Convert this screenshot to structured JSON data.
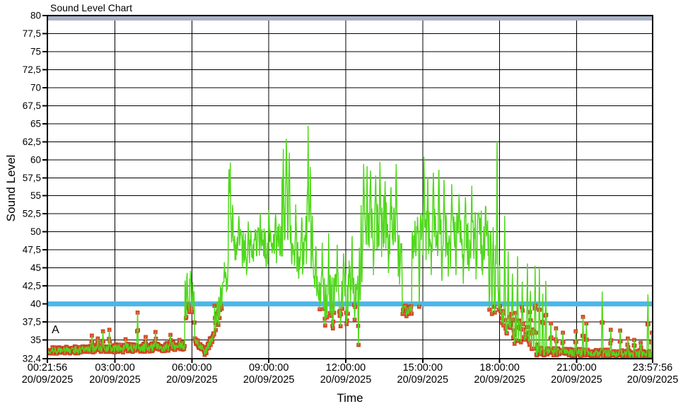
{
  "window": {
    "title": "Sound Level Chart"
  },
  "chart_data": {
    "type": "line",
    "title": "Sound Level Chart",
    "grid": "on",
    "legend": "none",
    "colors": {
      "trace": "#50d81c",
      "marker_fill": "#e1502d",
      "marker_edge": "#c23c1d",
      "alarm_line_40": "#4db7e9",
      "limit_band_80": "#a9b2c7",
      "grid_line": "#000000",
      "background": "#ffffff",
      "text": "#000000"
    },
    "x_axis": {
      "title": "Time",
      "start_minutes": 21.933,
      "end_minutes": 1437.933,
      "ticks": [
        {
          "time": "00:21:56",
          "date": "20/09/2025",
          "minutes": 21.933,
          "gridline": false
        },
        {
          "time": "03:00:00",
          "date": "20/09/2025",
          "minutes": 180,
          "gridline": true
        },
        {
          "time": "06:00:00",
          "date": "20/09/2025",
          "minutes": 360,
          "gridline": true
        },
        {
          "time": "09:00:00",
          "date": "20/09/2025",
          "minutes": 540,
          "gridline": true
        },
        {
          "time": "12:00:00",
          "date": "20/09/2025",
          "minutes": 720,
          "gridline": true
        },
        {
          "time": "15:00:00",
          "date": "20/09/2025",
          "minutes": 900,
          "gridline": true
        },
        {
          "time": "18:00:00",
          "date": "20/09/2025",
          "minutes": 1080,
          "gridline": true
        },
        {
          "time": "21:00:00",
          "date": "20/09/2025",
          "minutes": 1260,
          "gridline": true
        },
        {
          "time": "23:57:56",
          "date": "20/09/2025",
          "minutes": 1437.933,
          "gridline": false
        }
      ]
    },
    "y_axis": {
      "title": "Sound Level",
      "min": 32.4,
      "max": 80,
      "ticks": [
        {
          "label": "80",
          "value": 80
        },
        {
          "label": "77,5",
          "value": 77.5
        },
        {
          "label": "75",
          "value": 75
        },
        {
          "label": "72,5",
          "value": 72.5
        },
        {
          "label": "70",
          "value": 70
        },
        {
          "label": "67,5",
          "value": 67.5
        },
        {
          "label": "65",
          "value": 65
        },
        {
          "label": "62,5",
          "value": 62.5
        },
        {
          "label": "60",
          "value": 60
        },
        {
          "label": "57,5",
          "value": 57.5
        },
        {
          "label": "55",
          "value": 55
        },
        {
          "label": "52,5",
          "value": 52.5
        },
        {
          "label": "50",
          "value": 50
        },
        {
          "label": "47,5",
          "value": 47.5
        },
        {
          "label": "45",
          "value": 45
        },
        {
          "label": "42,5",
          "value": 42.5
        },
        {
          "label": "40",
          "value": 40
        },
        {
          "label": "37,5",
          "value": 37.5
        },
        {
          "label": "35",
          "value": 35
        },
        {
          "label": "32,4",
          "value": 32.4
        }
      ]
    },
    "limit_lines": [
      {
        "name": "upper-limit-80",
        "value": 80,
        "thickness": 6,
        "color": "#a9b2c7"
      },
      {
        "name": "alarm-level-40",
        "value": 40,
        "thickness": 7,
        "color": "#4db7e9"
      }
    ],
    "annotation": {
      "label": "A",
      "minutes": 32,
      "value": 36.3
    },
    "series": {
      "name": "Sound Level",
      "sample_step_minutes": 1,
      "line_width": 1.3,
      "marker": {
        "shape": "square",
        "size": 5,
        "rule": "value < threshold"
      },
      "marker_threshold": 40,
      "segments_format": "[t_start_min, t_end_min, level_from_dB, level_to_dB, jitter_dB]",
      "segments": [
        [
          21.933,
          120,
          33.5,
          33.7,
          0.5
        ],
        [
          120,
          230,
          33.7,
          33.9,
          0.6
        ],
        [
          230,
          343,
          33.9,
          34.1,
          0.6
        ],
        [
          343,
          366,
          40.5,
          40.5,
          3.0
        ],
        [
          366,
          390,
          35.0,
          33.3,
          0.5
        ],
        [
          390,
          412,
          33.3,
          35.8,
          0.6
        ],
        [
          412,
          444,
          37.0,
          43.5,
          2.0
        ],
        [
          444,
          456,
          50.0,
          49.0,
          4.0
        ],
        [
          456,
          570,
          47.6,
          48.8,
          2.4
        ],
        [
          570,
          592,
          52.0,
          52.0,
          4.2
        ],
        [
          592,
          625,
          47.0,
          47.0,
          2.8
        ],
        [
          625,
          642,
          50.0,
          48.0,
          4.5
        ],
        [
          642,
          658,
          45.5,
          42.5,
          3.0
        ],
        [
          658,
          755,
          41.3,
          41.3,
          3.2
        ],
        [
          755,
          840,
          50.3,
          50.3,
          3.8
        ],
        [
          840,
          852,
          47.0,
          45.0,
          3.5
        ],
        [
          852,
          874,
          39.2,
          39.0,
          0.7
        ],
        [
          874,
          880,
          46.0,
          48.0,
          3.0
        ],
        [
          880,
          1066,
          49.8,
          49.8,
          3.6
        ],
        [
          1066,
          1080,
          44.0,
          42.0,
          3.5
        ],
        [
          1080,
          1170,
          38.2,
          34.3,
          1.7
        ],
        [
          1170,
          1437.933,
          33.4,
          33.0,
          0.5
        ]
      ],
      "peaks_format": "[t_min, value_dB]",
      "peaks": [
        [
          126,
          35.6
        ],
        [
          140,
          35.2
        ],
        [
          152,
          36.2
        ],
        [
          167,
          36.4
        ],
        [
          205,
          35.1
        ],
        [
          233,
          38.8
        ],
        [
          252,
          35.4
        ],
        [
          275,
          36.1
        ],
        [
          310,
          35.7
        ],
        [
          331,
          35.0
        ],
        [
          349,
          44.3
        ],
        [
          357,
          44.6
        ],
        [
          362,
          43.0
        ],
        [
          436,
          45.8
        ],
        [
          447,
          58.7
        ],
        [
          450,
          59.6
        ],
        [
          470,
          52.2
        ],
        [
          488,
          44.0
        ],
        [
          520,
          52.6
        ],
        [
          540,
          53.0
        ],
        [
          556,
          52.4
        ],
        [
          574,
          61.5
        ],
        [
          581,
          62.9
        ],
        [
          588,
          61.0
        ],
        [
          603,
          53.8
        ],
        [
          610,
          43.5
        ],
        [
          617,
          52.0
        ],
        [
          632,
          64.7
        ],
        [
          637,
          59.0
        ],
        [
          650,
          48.0
        ],
        [
          665,
          48.5
        ],
        [
          672,
          37.0
        ],
        [
          680,
          49.8
        ],
        [
          690,
          36.6
        ],
        [
          700,
          48.2
        ],
        [
          708,
          36.9
        ],
        [
          715,
          47.0
        ],
        [
          722,
          37.2
        ],
        [
          728,
          46.0
        ],
        [
          735,
          49.4
        ],
        [
          741,
          37.8
        ],
        [
          746,
          42.0
        ],
        [
          750,
          34.3
        ],
        [
          752,
          47.8
        ],
        [
          758,
          43.0
        ],
        [
          762,
          59.4
        ],
        [
          770,
          59.1
        ],
        [
          778,
          58.5
        ],
        [
          785,
          44.0
        ],
        [
          790,
          57.8
        ],
        [
          800,
          59.7
        ],
        [
          812,
          57.0
        ],
        [
          820,
          44.3
        ],
        [
          826,
          56.2
        ],
        [
          838,
          59.4
        ],
        [
          862,
          38.3
        ],
        [
          870,
          39.6
        ],
        [
          876,
          50.1
        ],
        [
          892,
          39.6
        ],
        [
          903,
          60.4
        ],
        [
          912,
          57.6
        ],
        [
          920,
          44.0
        ],
        [
          925,
          58.2
        ],
        [
          938,
          58.6
        ],
        [
          945,
          43.2
        ],
        [
          950,
          57.2
        ],
        [
          960,
          43.8
        ],
        [
          968,
          56.6
        ],
        [
          978,
          44.0
        ],
        [
          985,
          55.2
        ],
        [
          995,
          42.8
        ],
        [
          1000,
          54.8
        ],
        [
          1008,
          44.6
        ],
        [
          1015,
          56.4
        ],
        [
          1025,
          43.4
        ],
        [
          1032,
          52.3
        ],
        [
          1040,
          44.0
        ],
        [
          1047,
          53.6
        ],
        [
          1056,
          39.2
        ],
        [
          1062,
          38.6
        ],
        [
          1069,
          38.8
        ],
        [
          1074,
          62.6
        ],
        [
          1078,
          39.2
        ],
        [
          1092,
          52.2
        ],
        [
          1100,
          47.3
        ],
        [
          1110,
          44.2
        ],
        [
          1122,
          46.6
        ],
        [
          1133,
          43.1
        ],
        [
          1145,
          45.6
        ],
        [
          1152,
          41.8
        ],
        [
          1163,
          45.3
        ],
        [
          1173,
          45.2
        ],
        [
          1181,
          41.4
        ],
        [
          1188,
          43.2
        ],
        [
          1200,
          37.3
        ],
        [
          1212,
          36.6
        ],
        [
          1228,
          36.0
        ],
        [
          1258,
          36.2
        ],
        [
          1275,
          38.2
        ],
        [
          1283,
          37.3
        ],
        [
          1320,
          41.7
        ],
        [
          1340,
          36.4
        ],
        [
          1362,
          36.3
        ],
        [
          1380,
          35.2
        ],
        [
          1395,
          35.0
        ],
        [
          1410,
          34.6
        ],
        [
          1427,
          41.3
        ],
        [
          1436,
          36.0
        ]
      ]
    }
  }
}
